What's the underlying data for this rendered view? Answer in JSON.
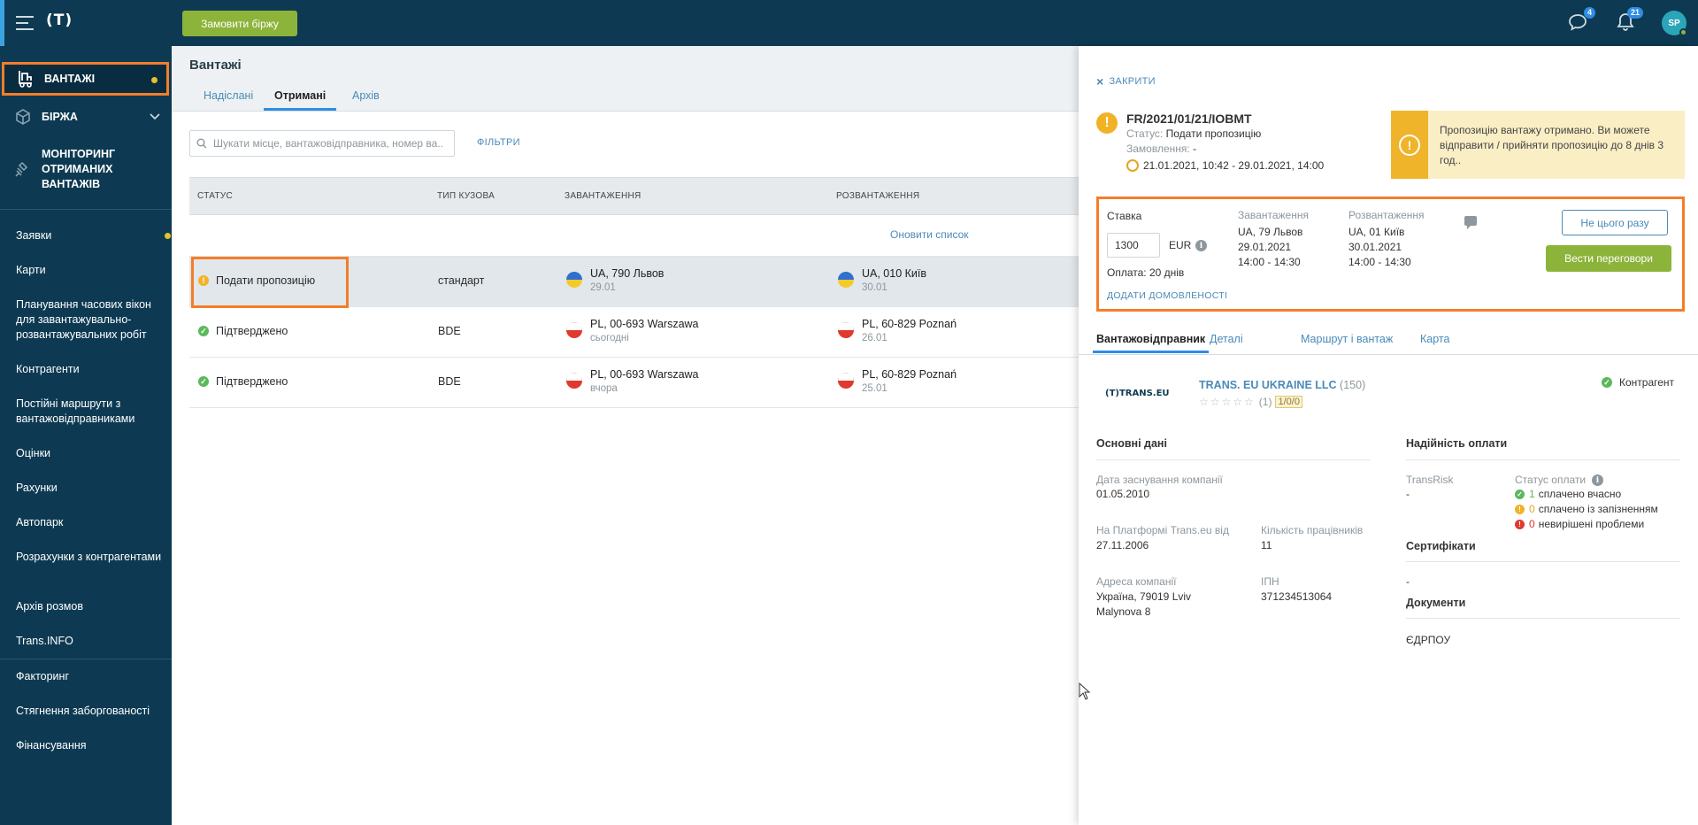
{
  "topbar": {
    "logo": "(T)",
    "order_button": "Замовити біржу",
    "messages_badge": "4",
    "notifications_badge": "21",
    "avatar_initials": "SP"
  },
  "sidebar": {
    "top_items": [
      {
        "label": "ВАНТАЖІ",
        "icon": "cargo-icon"
      },
      {
        "label": "БІРЖА",
        "icon": "box-icon"
      },
      {
        "label": "МОНІТОРИНГ ОТРИМАНИХ ВАНТАЖІВ",
        "icon": "satellite-icon"
      }
    ],
    "items": [
      "Заявки",
      "Карти",
      "Планування часових вікон для завантажувально-розвантажувальних робіт",
      "Контрагенти",
      "Постійні маршрути з вантажовідправниками",
      "Оцінки",
      "Рахунки",
      "Автопарк",
      "Розрахунки з контрагентами",
      "Архів розмов",
      "Trans.INFO"
    ],
    "bottom_items": [
      "Факторинг",
      "Стягнення заборгованості",
      "Фінансування"
    ]
  },
  "main": {
    "title": "Вантажі",
    "tabs": [
      "Надіслані",
      "Отримані",
      "Архів"
    ],
    "active_tab": "Отримані",
    "search_placeholder": "Шукати місце, вантажовідправника, номер ва...",
    "filters_label": "ФІЛЬТРИ",
    "columns": [
      "СТАТУС",
      "ТИП КУЗОВА",
      "ЗАВАНТАЖЕННЯ",
      "РОЗВАНТАЖЕННЯ"
    ],
    "refresh_label": "Оновити список",
    "rows": [
      {
        "status": "Подати пропозицію",
        "status_type": "warning",
        "body": "стандарт",
        "load_place": "UA, 790 Львов",
        "load_date": "29.01",
        "load_flag": "ua",
        "unload_place": "UA, 010 Київ",
        "unload_date": "30.01",
        "unload_flag": "ua"
      },
      {
        "status": "Підтверджено",
        "status_type": "ok",
        "body": "BDE",
        "load_place": "PL, 00-693 Warszawa",
        "load_date": "сьогодні",
        "load_flag": "pl",
        "unload_place": "PL, 60-829 Poznań",
        "unload_date": "26.01",
        "unload_flag": "pl"
      },
      {
        "status": "Підтверджено",
        "status_type": "ok",
        "body": "BDE",
        "load_place": "PL, 00-693 Warszawa",
        "load_date": "вчора",
        "load_flag": "pl",
        "unload_place": "PL, 60-829 Poznań",
        "unload_date": "25.01",
        "unload_flag": "pl"
      }
    ]
  },
  "panel": {
    "close_label": "ЗАКРИТИ",
    "reference": "FR/2021/01/21/IOBMT",
    "status_key": "Статус:",
    "status_value": "Подати пропозицію",
    "order_key": "Замовлення:",
    "order_value": "-",
    "dates": "21.01.2021, 10:42 - 29.01.2021, 14:00",
    "notice": "Пропозицію вантажу отримано. Ви можете відправити / прийняти пропозицію до 8 днів 3 год..",
    "offer": {
      "rate_label": "Ставка",
      "rate_value": "1300",
      "currency": "EUR",
      "payment": "Оплата: 20 днів",
      "add_agreements": "ДОДАТИ ДОМОВЛЕНОСТІ",
      "loading_title": "Завантаження",
      "loading_place": "UA, 79 Львов",
      "loading_date": "29.01.2021",
      "loading_time": "14:00 - 14:30",
      "unloading_title": "Розвантаження",
      "unloading_place": "UA, 01 Київ",
      "unloading_date": "30.01.2021",
      "unloading_time": "14:00 - 14:30",
      "decline_button": "Не цього разу",
      "negotiate_button": "Вести переговори"
    },
    "tabs": [
      "Вантажовідправник",
      "Деталі",
      "Маршрут і вантаж",
      "Карта"
    ],
    "active_tab": "Вантажовідправник",
    "company": {
      "logo_text": "(T)TRANS.EU",
      "name": "TRANS. EU UKRAINE LLC",
      "count": "(150)",
      "stars": "☆☆☆☆☆",
      "rating_count": "(1)",
      "score": "1/0/0",
      "contractor_label": "Контрагент"
    },
    "basic": {
      "title": "Основні дані",
      "founded_label": "Дата заснування компанії",
      "founded_value": "01.05.2010",
      "platform_label": "На Платформі Trans.eu від",
      "platform_value": "27.11.2006",
      "employees_label": "Кількість працівників",
      "employees_value": "11",
      "address_label": "Адреса компанії",
      "address_line1": "Україна, 79019 Lviv",
      "address_line2": "Malynova 8",
      "tax_label": "ІПН",
      "tax_value": "371234513064"
    },
    "reliability": {
      "title": "Надійність оплати",
      "transrisk_label": "TransRisk",
      "transrisk_value": "-",
      "pay_status_label": "Статус оплати",
      "on_time_count": "1",
      "on_time_label": "сплачено вчасно",
      "late_count": "0",
      "late_label": "сплачено із запізненням",
      "problems_count": "0",
      "problems_label": "невирішені проблеми",
      "certificates_title": "Сертифікати",
      "certificates_value": "-",
      "documents_title": "Документи",
      "documents_value": "ЄДРПОУ"
    }
  },
  "colors": {
    "nav_bg": "#0d3a52",
    "accent_green": "#8db43a",
    "highlight_orange": "#f47d2a",
    "link_blue": "#4a8ab8",
    "warning_yellow": "#f2b227"
  }
}
